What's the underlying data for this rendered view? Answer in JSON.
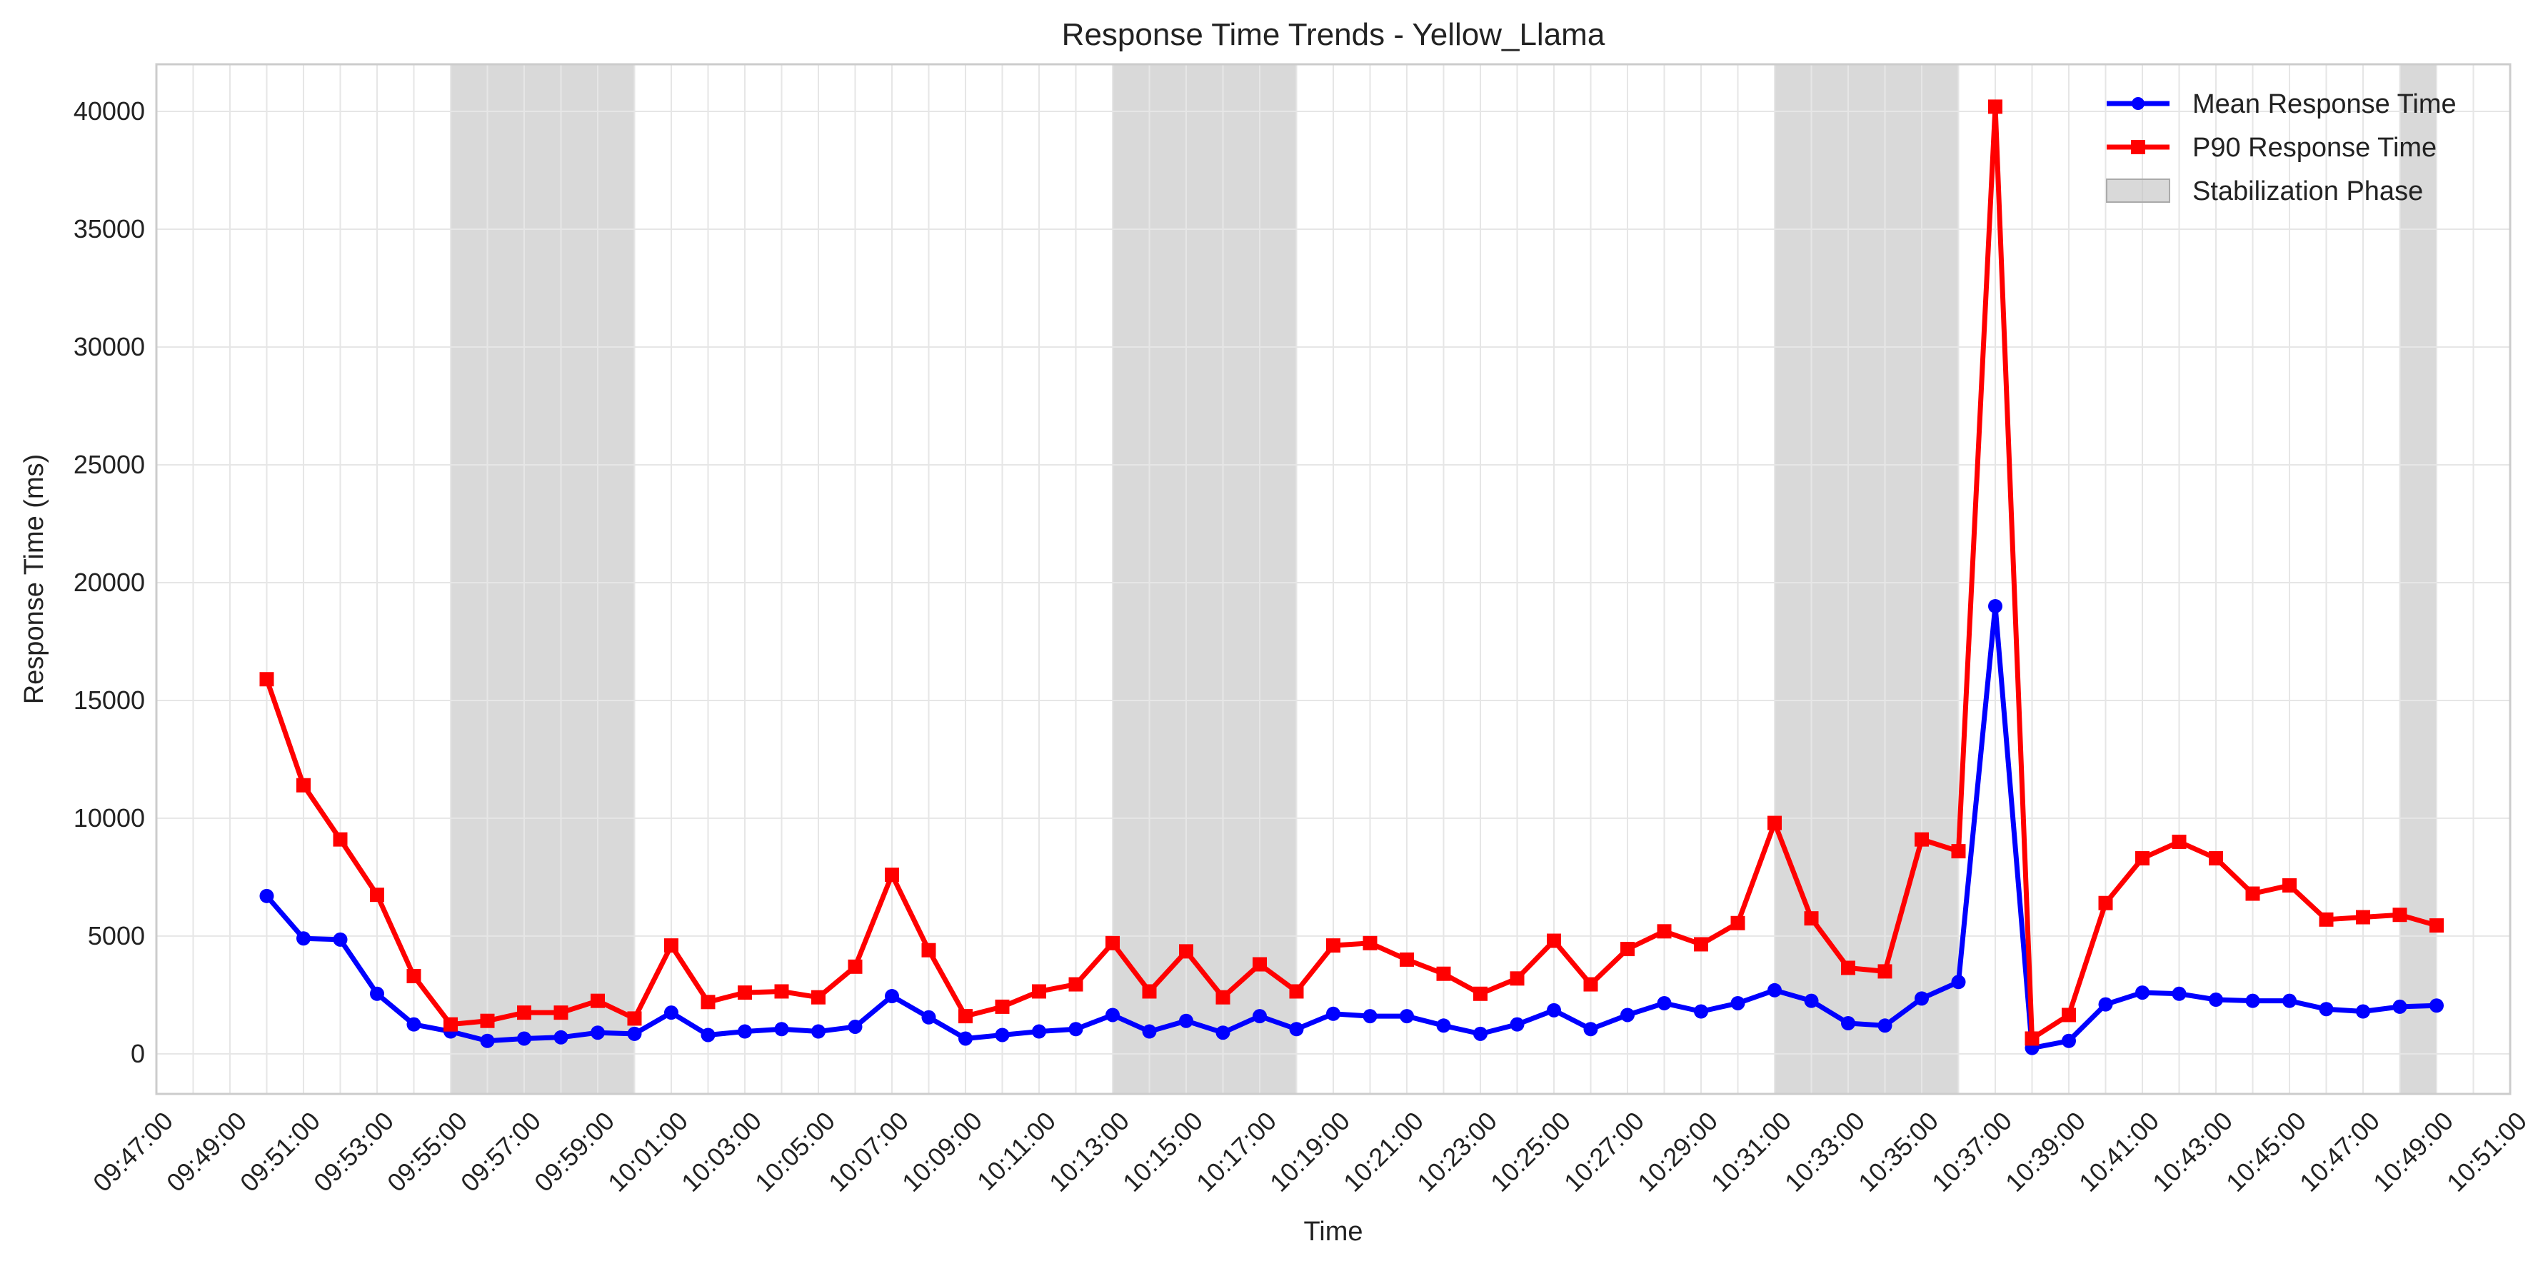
{
  "chart_data": {
    "type": "line",
    "title": "Response Time Trends - Yellow_Llama",
    "xlabel": "Time",
    "ylabel": "Response Time (ms)",
    "xlim": [
      "09:47:00",
      "10:51:00"
    ],
    "ylim": [
      -1700,
      42000
    ],
    "y_ticks": [
      0,
      5000,
      10000,
      15000,
      20000,
      25000,
      30000,
      35000,
      40000
    ],
    "x_ticks": [
      "09:47:00",
      "09:49:00",
      "09:51:00",
      "09:53:00",
      "09:55:00",
      "09:57:00",
      "09:59:00",
      "10:01:00",
      "10:03:00",
      "10:05:00",
      "10:07:00",
      "10:09:00",
      "10:11:00",
      "10:13:00",
      "10:15:00",
      "10:17:00",
      "10:19:00",
      "10:21:00",
      "10:23:00",
      "10:25:00",
      "10:27:00",
      "10:29:00",
      "10:31:00",
      "10:33:00",
      "10:35:00",
      "10:37:00",
      "10:39:00",
      "10:41:00",
      "10:43:00",
      "10:45:00",
      "10:47:00",
      "10:49:00",
      "10:51:00"
    ],
    "grid": true,
    "legend_position": "top-right",
    "x": [
      "09:50:00",
      "09:51:00",
      "09:52:00",
      "09:53:00",
      "09:54:00",
      "09:55:00",
      "09:56:00",
      "09:57:00",
      "09:58:00",
      "09:59:00",
      "10:00:00",
      "10:01:00",
      "10:02:00",
      "10:03:00",
      "10:04:00",
      "10:05:00",
      "10:06:00",
      "10:07:00",
      "10:08:00",
      "10:09:00",
      "10:10:00",
      "10:11:00",
      "10:12:00",
      "10:13:00",
      "10:14:00",
      "10:15:00",
      "10:16:00",
      "10:17:00",
      "10:18:00",
      "10:19:00",
      "10:20:00",
      "10:21:00",
      "10:22:00",
      "10:23:00",
      "10:24:00",
      "10:25:00",
      "10:26:00",
      "10:27:00",
      "10:28:00",
      "10:29:00",
      "10:30:00",
      "10:31:00",
      "10:32:00",
      "10:33:00",
      "10:34:00",
      "10:35:00",
      "10:36:00",
      "10:37:00",
      "10:38:00",
      "10:39:00",
      "10:40:00",
      "10:41:00",
      "10:42:00",
      "10:43:00",
      "10:44:00",
      "10:45:00",
      "10:46:00",
      "10:47:00",
      "10:48:00",
      "10:49:00"
    ],
    "series": [
      {
        "name": "Mean Response Time",
        "color": "#0000ff",
        "marker": "circle",
        "values": [
          6700,
          4900,
          4850,
          2550,
          1250,
          950,
          550,
          650,
          700,
          900,
          850,
          1750,
          800,
          950,
          1050,
          950,
          1150,
          2450,
          1550,
          650,
          800,
          950,
          1050,
          1650,
          950,
          1400,
          900,
          1600,
          1050,
          1700,
          1600,
          1600,
          1200,
          850,
          1250,
          1850,
          1050,
          1650,
          2150,
          1800,
          2150,
          2700,
          2250,
          1300,
          1200,
          2350,
          3050,
          19000,
          250,
          550,
          2100,
          2600,
          2550,
          2300,
          2250,
          2250,
          1900,
          1800,
          2000,
          2050
        ]
      },
      {
        "name": "P90 Response Time",
        "color": "#ff0000",
        "marker": "square",
        "values": [
          15900,
          11400,
          9100,
          6750,
          3300,
          1250,
          1400,
          1750,
          1750,
          2250,
          1500,
          4600,
          2200,
          2600,
          2650,
          2400,
          3700,
          7600,
          4400,
          1600,
          2000,
          2650,
          2950,
          4700,
          2650,
          4350,
          2400,
          3800,
          2650,
          4600,
          4700,
          4000,
          3400,
          2550,
          3200,
          4800,
          2950,
          4450,
          5200,
          4650,
          5550,
          9800,
          5750,
          3650,
          3500,
          9100,
          8600,
          40200,
          650,
          1650,
          6400,
          8300,
          9000,
          8300,
          6800,
          7150,
          5700,
          5800,
          5900,
          5450
        ]
      }
    ],
    "shaded_regions": {
      "name": "Stabilization Phase",
      "color": "#bfbfbf",
      "ranges": [
        [
          "09:55:00",
          "10:00:00"
        ],
        [
          "10:13:00",
          "10:18:00"
        ],
        [
          "10:31:00",
          "10:36:00"
        ],
        [
          "10:48:00",
          "10:49:00"
        ]
      ]
    }
  }
}
